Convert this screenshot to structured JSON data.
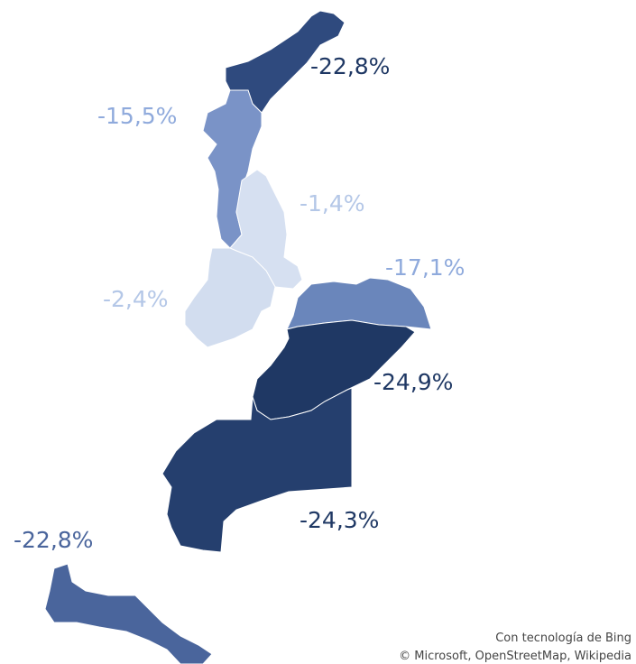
{
  "chart_data": {
    "type": "map",
    "regions": [
      {
        "value": -22.8,
        "value_label": "-22,8%",
        "color": "#2f4a7e",
        "label_color": "#1f3864"
      },
      {
        "value": -15.5,
        "value_label": "-15,5%",
        "color": "#7a93c7",
        "label_color": "#8faadc"
      },
      {
        "value": -1.4,
        "value_label": "-1,4%",
        "color": "#d6e0f1",
        "label_color": "#b4c7e7"
      },
      {
        "value": -2.4,
        "value_label": "-2,4%",
        "color": "#d2ddef",
        "label_color": "#b4c7e7"
      },
      {
        "value": -17.1,
        "value_label": "-17,1%",
        "color": "#6a86bb",
        "label_color": "#8faadc"
      },
      {
        "value": -24.9,
        "value_label": "-24,9%",
        "color": "#1f3864",
        "label_color": "#1f3864"
      },
      {
        "value": -24.3,
        "value_label": "-24,3%",
        "color": "#253f6e",
        "label_color": "#1f3864"
      },
      {
        "value": -22.8,
        "value_label": "-22,8%",
        "color": "#4a659c",
        "label_color": "#4a659c"
      }
    ]
  },
  "attribution": [
    "Con tecnología de Bing",
    "© Microsoft, OpenStreetMap, Wikipedia"
  ]
}
